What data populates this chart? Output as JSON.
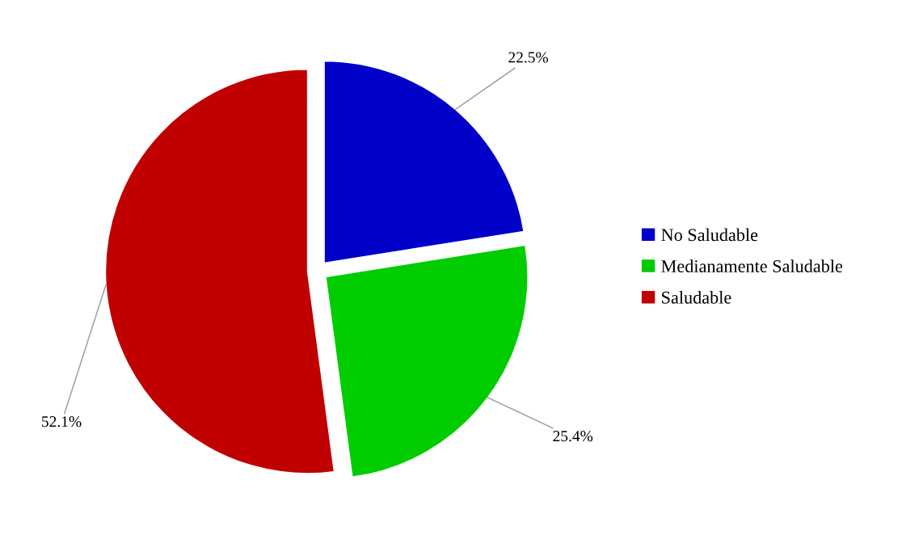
{
  "chart_data": {
    "type": "pie",
    "categories": [
      "No Saludable",
      "Medianamente Saludable",
      "Saludable"
    ],
    "values": [
      22.5,
      25.4,
      52.1
    ],
    "colors": [
      "#0000c8",
      "#00cc00",
      "#c00000"
    ],
    "value_labels": [
      "22.5%",
      "25.4%",
      "52.1%"
    ],
    "legend": "right"
  }
}
